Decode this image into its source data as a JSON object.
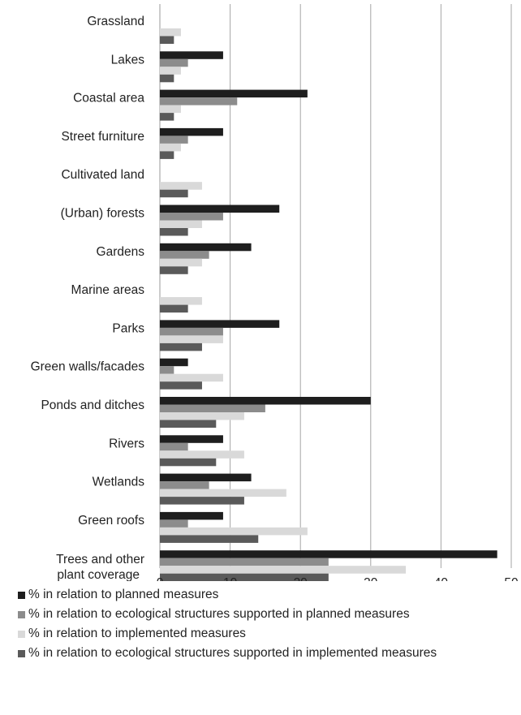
{
  "chart_data": {
    "type": "bar",
    "orientation": "horizontal",
    "categories": [
      "Grassland",
      "Lakes",
      "Coastal area",
      "Street furniture",
      "Cultivated land",
      "(Urban) forests",
      "Gardens",
      "Marine areas",
      "Parks",
      "Green walls/facades",
      "Ponds and ditches",
      "Rivers",
      "Wetlands",
      "Green roofs",
      "Trees and other plant coverage"
    ],
    "series": [
      {
        "name": "% in relation to planned measures",
        "color": "#1e1e1e",
        "values": [
          0,
          9,
          21,
          9,
          0,
          17,
          13,
          0,
          17,
          4,
          30,
          9,
          13,
          9,
          48
        ]
      },
      {
        "name": "% in relation to ecological structures supported in planned measures",
        "color": "#8c8c8c",
        "values": [
          0,
          4,
          11,
          4,
          0,
          9,
          7,
          0,
          9,
          2,
          15,
          4,
          7,
          4,
          24
        ]
      },
      {
        "name": "% in relation to implemented measures",
        "color": "#d9d9d9",
        "values": [
          3,
          3,
          3,
          3,
          6,
          6,
          6,
          6,
          9,
          9,
          12,
          12,
          18,
          21,
          35
        ]
      },
      {
        "name": "% in relation to ecological structures supported in implemented measures",
        "color": "#5a5a5a",
        "values": [
          2,
          2,
          2,
          2,
          4,
          4,
          4,
          4,
          6,
          6,
          8,
          8,
          12,
          14,
          24
        ]
      }
    ],
    "xlim": [
      0,
      50
    ],
    "xticks": [
      "0",
      "10",
      "20",
      "30",
      "40",
      "50"
    ],
    "grid": "vertical",
    "legend": "bottom",
    "title": "",
    "xlabel": "",
    "ylabel": ""
  }
}
